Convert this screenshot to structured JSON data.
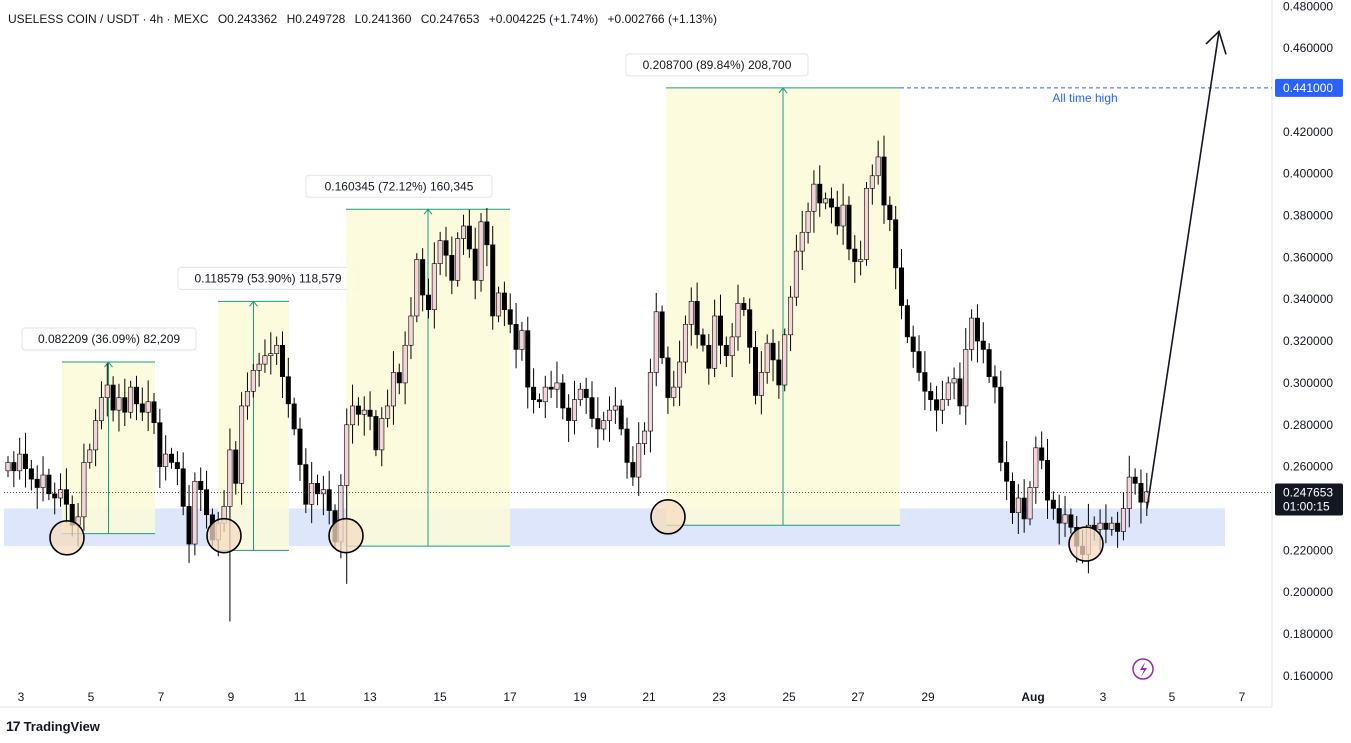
{
  "header": {
    "symbol": "USELESS COIN / USDT · 4h · MEXC",
    "open": "O0.243362",
    "high": "H0.249728",
    "low": "L0.241360",
    "close": "C0.247653",
    "change": "+0.004225 (+1.74%)",
    "change2": "+0.002766 (+1.13%)"
  },
  "brand": {
    "logo": "17",
    "name": "TradingView"
  },
  "colors": {
    "bull": "#f3d4d8",
    "bear": "#000000",
    "zone": "#dde6fb",
    "box": "#fbfad8",
    "measure": "#1e9b7e",
    "ath": "#2962ff",
    "circle_fill": "#f7dcbf"
  },
  "chart_data": {
    "type": "candlestick",
    "y_ticks": [
      "0.480000",
      "0.460000",
      "0.440000",
      "0.420000",
      "0.400000",
      "0.380000",
      "0.360000",
      "0.340000",
      "0.320000",
      "0.300000",
      "0.280000",
      "0.260000",
      "0.240000",
      "0.220000",
      "0.200000",
      "0.180000",
      "0.160000"
    ],
    "ylim": [
      0.148,
      0.483
    ],
    "x_ticks": [
      "3",
      "5",
      "7",
      "9",
      "11",
      "13",
      "15",
      "17",
      "19",
      "21",
      "23",
      "25",
      "27",
      "29",
      "Aug",
      "3",
      "5",
      "7"
    ],
    "current_price": "0.247653",
    "countdown": "01:00:15",
    "ath_price": "0.441000",
    "ath_label": "All time high",
    "support_zone": [
      0.222,
      0.24
    ],
    "measures": [
      {
        "label": "0.082209 (36.09%) 82,209",
        "low": 0.228,
        "high": 0.31
      },
      {
        "label": "0.118579 (53.90%) 118,579",
        "low": 0.22,
        "high": 0.339
      },
      {
        "label": "0.160345 (72.12%) 160,345",
        "low": 0.222,
        "high": 0.383
      },
      {
        "label": "0.208700 (89.84%) 208,700",
        "low": 0.232,
        "high": 0.441
      }
    ],
    "closes": [
      0.262,
      0.258,
      0.266,
      0.259,
      0.254,
      0.25,
      0.256,
      0.247,
      0.245,
      0.249,
      0.242,
      0.232,
      0.236,
      0.262,
      0.268,
      0.282,
      0.293,
      0.299,
      0.287,
      0.293,
      0.286,
      0.298,
      0.29,
      0.286,
      0.291,
      0.281,
      0.26,
      0.266,
      0.262,
      0.259,
      0.241,
      0.223,
      0.253,
      0.249,
      0.237,
      0.225,
      0.233,
      0.241,
      0.268,
      0.252,
      0.289,
      0.296,
      0.306,
      0.309,
      0.313,
      0.314,
      0.318,
      0.303,
      0.29,
      0.278,
      0.261,
      0.242,
      0.252,
      0.247,
      0.249,
      0.239,
      0.224,
      0.251,
      0.28,
      0.289,
      0.285,
      0.287,
      0.284,
      0.268,
      0.283,
      0.289,
      0.305,
      0.3,
      0.318,
      0.332,
      0.359,
      0.342,
      0.335,
      0.357,
      0.368,
      0.361,
      0.349,
      0.369,
      0.375,
      0.364,
      0.349,
      0.377,
      0.366,
      0.332,
      0.343,
      0.335,
      0.328,
      0.316,
      0.325,
      0.298,
      0.292,
      0.291,
      0.298,
      0.297,
      0.3,
      0.288,
      0.282,
      0.292,
      0.297,
      0.293,
      0.283,
      0.278,
      0.282,
      0.287,
      0.289,
      0.278,
      0.262,
      0.255,
      0.271,
      0.277,
      0.305,
      0.334,
      0.312,
      0.293,
      0.298,
      0.31,
      0.328,
      0.339,
      0.323,
      0.318,
      0.307,
      0.332,
      0.318,
      0.313,
      0.322,
      0.338,
      0.335,
      0.317,
      0.294,
      0.305,
      0.319,
      0.311,
      0.299,
      0.323,
      0.341,
      0.363,
      0.372,
      0.382,
      0.395,
      0.386,
      0.388,
      0.384,
      0.375,
      0.385,
      0.364,
      0.358,
      0.359,
      0.393,
      0.399,
      0.408,
      0.385,
      0.378,
      0.355,
      0.337,
      0.322,
      0.315,
      0.305,
      0.296,
      0.292,
      0.287,
      0.292,
      0.3,
      0.302,
      0.289,
      0.316,
      0.331,
      0.32,
      0.316,
      0.303,
      0.298,
      0.262,
      0.253,
      0.238,
      0.245,
      0.235,
      0.25,
      0.269,
      0.263,
      0.244,
      0.24,
      0.233,
      0.237,
      0.231,
      0.222,
      0.218,
      0.232,
      0.23,
      0.233,
      0.23,
      0.233,
      0.229,
      0.24,
      0.255,
      0.252,
      0.243,
      0.248
    ]
  }
}
